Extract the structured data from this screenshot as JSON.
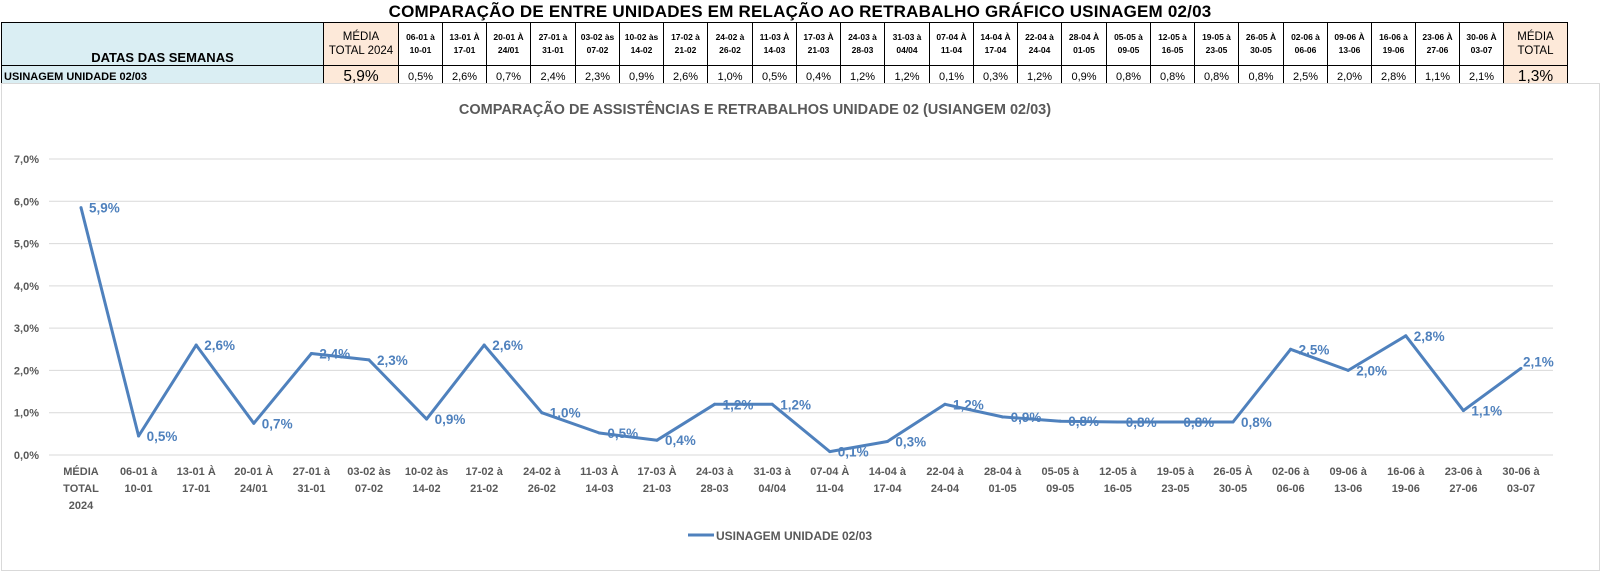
{
  "page_title": "COMPARAÇÃO DE ENTRE UNIDADES EM RELAÇÃO AO RETRABALHO GRÁFICO USINAGEM 02/03",
  "table": {
    "row_header_label": "DATAS DAS SEMANAS",
    "avg_total_2024_label": [
      "MÉDIA",
      "TOTAL 2024"
    ],
    "avg_total_label": [
      "MÉDIA",
      "TOTAL"
    ],
    "weeks": [
      [
        "06-01 à",
        "10-01"
      ],
      [
        "13-01 À",
        "17-01"
      ],
      [
        "20-01 À",
        "24/01"
      ],
      [
        "27-01 à",
        "31-01"
      ],
      [
        "03-02 às",
        "07-02"
      ],
      [
        "10-02 às",
        "14-02"
      ],
      [
        "17-02 à",
        "21-02"
      ],
      [
        "24-02 à",
        "26-02"
      ],
      [
        "11-03 À",
        "14-03"
      ],
      [
        "17-03 À",
        "21-03"
      ],
      [
        "24-03 à",
        "28-03"
      ],
      [
        "31-03 à",
        "04/04"
      ],
      [
        "07-04 À",
        "11-04"
      ],
      [
        "14-04 À",
        "17-04"
      ],
      [
        "22-04 à",
        "24-04"
      ],
      [
        "28-04 À",
        "01-05"
      ],
      [
        "05-05 à",
        "09-05"
      ],
      [
        "12-05 à",
        "16-05"
      ],
      [
        "19-05 à",
        "23-05"
      ],
      [
        "26-05 À",
        "30-05"
      ],
      [
        "02-06 à",
        "06-06"
      ],
      [
        "09-06 À",
        "13-06"
      ],
      [
        "16-06 à",
        "19-06"
      ],
      [
        "23-06 À",
        "27-06"
      ],
      [
        "30-06 À",
        "03-07"
      ]
    ],
    "row_label": "USINAGEM UNIDADE 02/03",
    "avg_total_2024_value": "5,9%",
    "week_values": [
      "0,5%",
      "2,6%",
      "0,7%",
      "2,4%",
      "2,3%",
      "0,9%",
      "2,6%",
      "1,0%",
      "0,5%",
      "0,4%",
      "1,2%",
      "1,2%",
      "0,1%",
      "0,3%",
      "1,2%",
      "0,9%",
      "0,8%",
      "0,8%",
      "0,8%",
      "0,8%",
      "2,5%",
      "2,0%",
      "2,8%",
      "1,1%",
      "2,1%"
    ],
    "avg_total_value": "1,3%"
  },
  "chart_data": {
    "type": "line",
    "title": "COMPARAÇÃO DE ASSISTÊNCIAS E RETRABALHOS UNIDADE 02  (USIANGEM 02/03)",
    "categories": [
      [
        "MÉDIA",
        "TOTAL",
        "2024"
      ],
      [
        "06-01 à",
        "10-01"
      ],
      [
        "13-01 À",
        "17-01"
      ],
      [
        "20-01 À",
        "24/01"
      ],
      [
        "27-01 à",
        "31-01"
      ],
      [
        "03-02 às",
        "07-02"
      ],
      [
        "10-02 às",
        "14-02"
      ],
      [
        "17-02 à",
        "21-02"
      ],
      [
        "24-02 à",
        "26-02"
      ],
      [
        "11-03 À",
        "14-03"
      ],
      [
        "17-03 À",
        "21-03"
      ],
      [
        "24-03 à",
        "28-03"
      ],
      [
        "31-03 à",
        "04/04"
      ],
      [
        "07-04 À",
        "11-04"
      ],
      [
        "14-04 à",
        "17-04"
      ],
      [
        "22-04 à",
        "24-04"
      ],
      [
        "28-04 à",
        "01-05"
      ],
      [
        "05-05 à",
        "09-05"
      ],
      [
        "12-05 à",
        "16-05"
      ],
      [
        "19-05 à",
        "23-05"
      ],
      [
        "26-05 À",
        "30-05"
      ],
      [
        "02-06 à",
        "06-06"
      ],
      [
        "09-06 à",
        "13-06"
      ],
      [
        "16-06 à",
        "19-06"
      ],
      [
        "23-06 à",
        "27-06"
      ],
      [
        "30-06 à",
        "03-07"
      ]
    ],
    "series": [
      {
        "name": "USINAGEM UNIDADE 02/03",
        "color": "#4f81bd",
        "values": [
          5.85,
          0.45,
          2.6,
          0.75,
          2.4,
          2.25,
          0.85,
          2.6,
          1.0,
          0.52,
          0.35,
          1.2,
          1.2,
          0.08,
          0.32,
          1.2,
          0.9,
          0.8,
          0.78,
          0.78,
          0.78,
          2.5,
          2.0,
          2.82,
          1.05,
          2.05
        ],
        "labels": [
          "5,9%",
          "0,5%",
          "2,6%",
          "0,7%",
          "2,4%",
          "2,3%",
          "0,9%",
          "2,6%",
          "1,0%",
          "0,5%",
          "0,4%",
          "1,2%",
          "1,2%",
          "0,1%",
          "0,3%",
          "1,2%",
          "0,9%",
          "0,8%",
          "0,8%",
          "0,8%",
          "0,8%",
          "2,5%",
          "2,0%",
          "2,8%",
          "1,1%",
          "2,1%"
        ]
      }
    ],
    "y_ticks": [
      "0,0%",
      "1,0%",
      "2,0%",
      "3,0%",
      "4,0%",
      "5,0%",
      "6,0%",
      "7,0%"
    ],
    "ylim": [
      0,
      7
    ],
    "grid": true,
    "legend_position": "bottom"
  }
}
